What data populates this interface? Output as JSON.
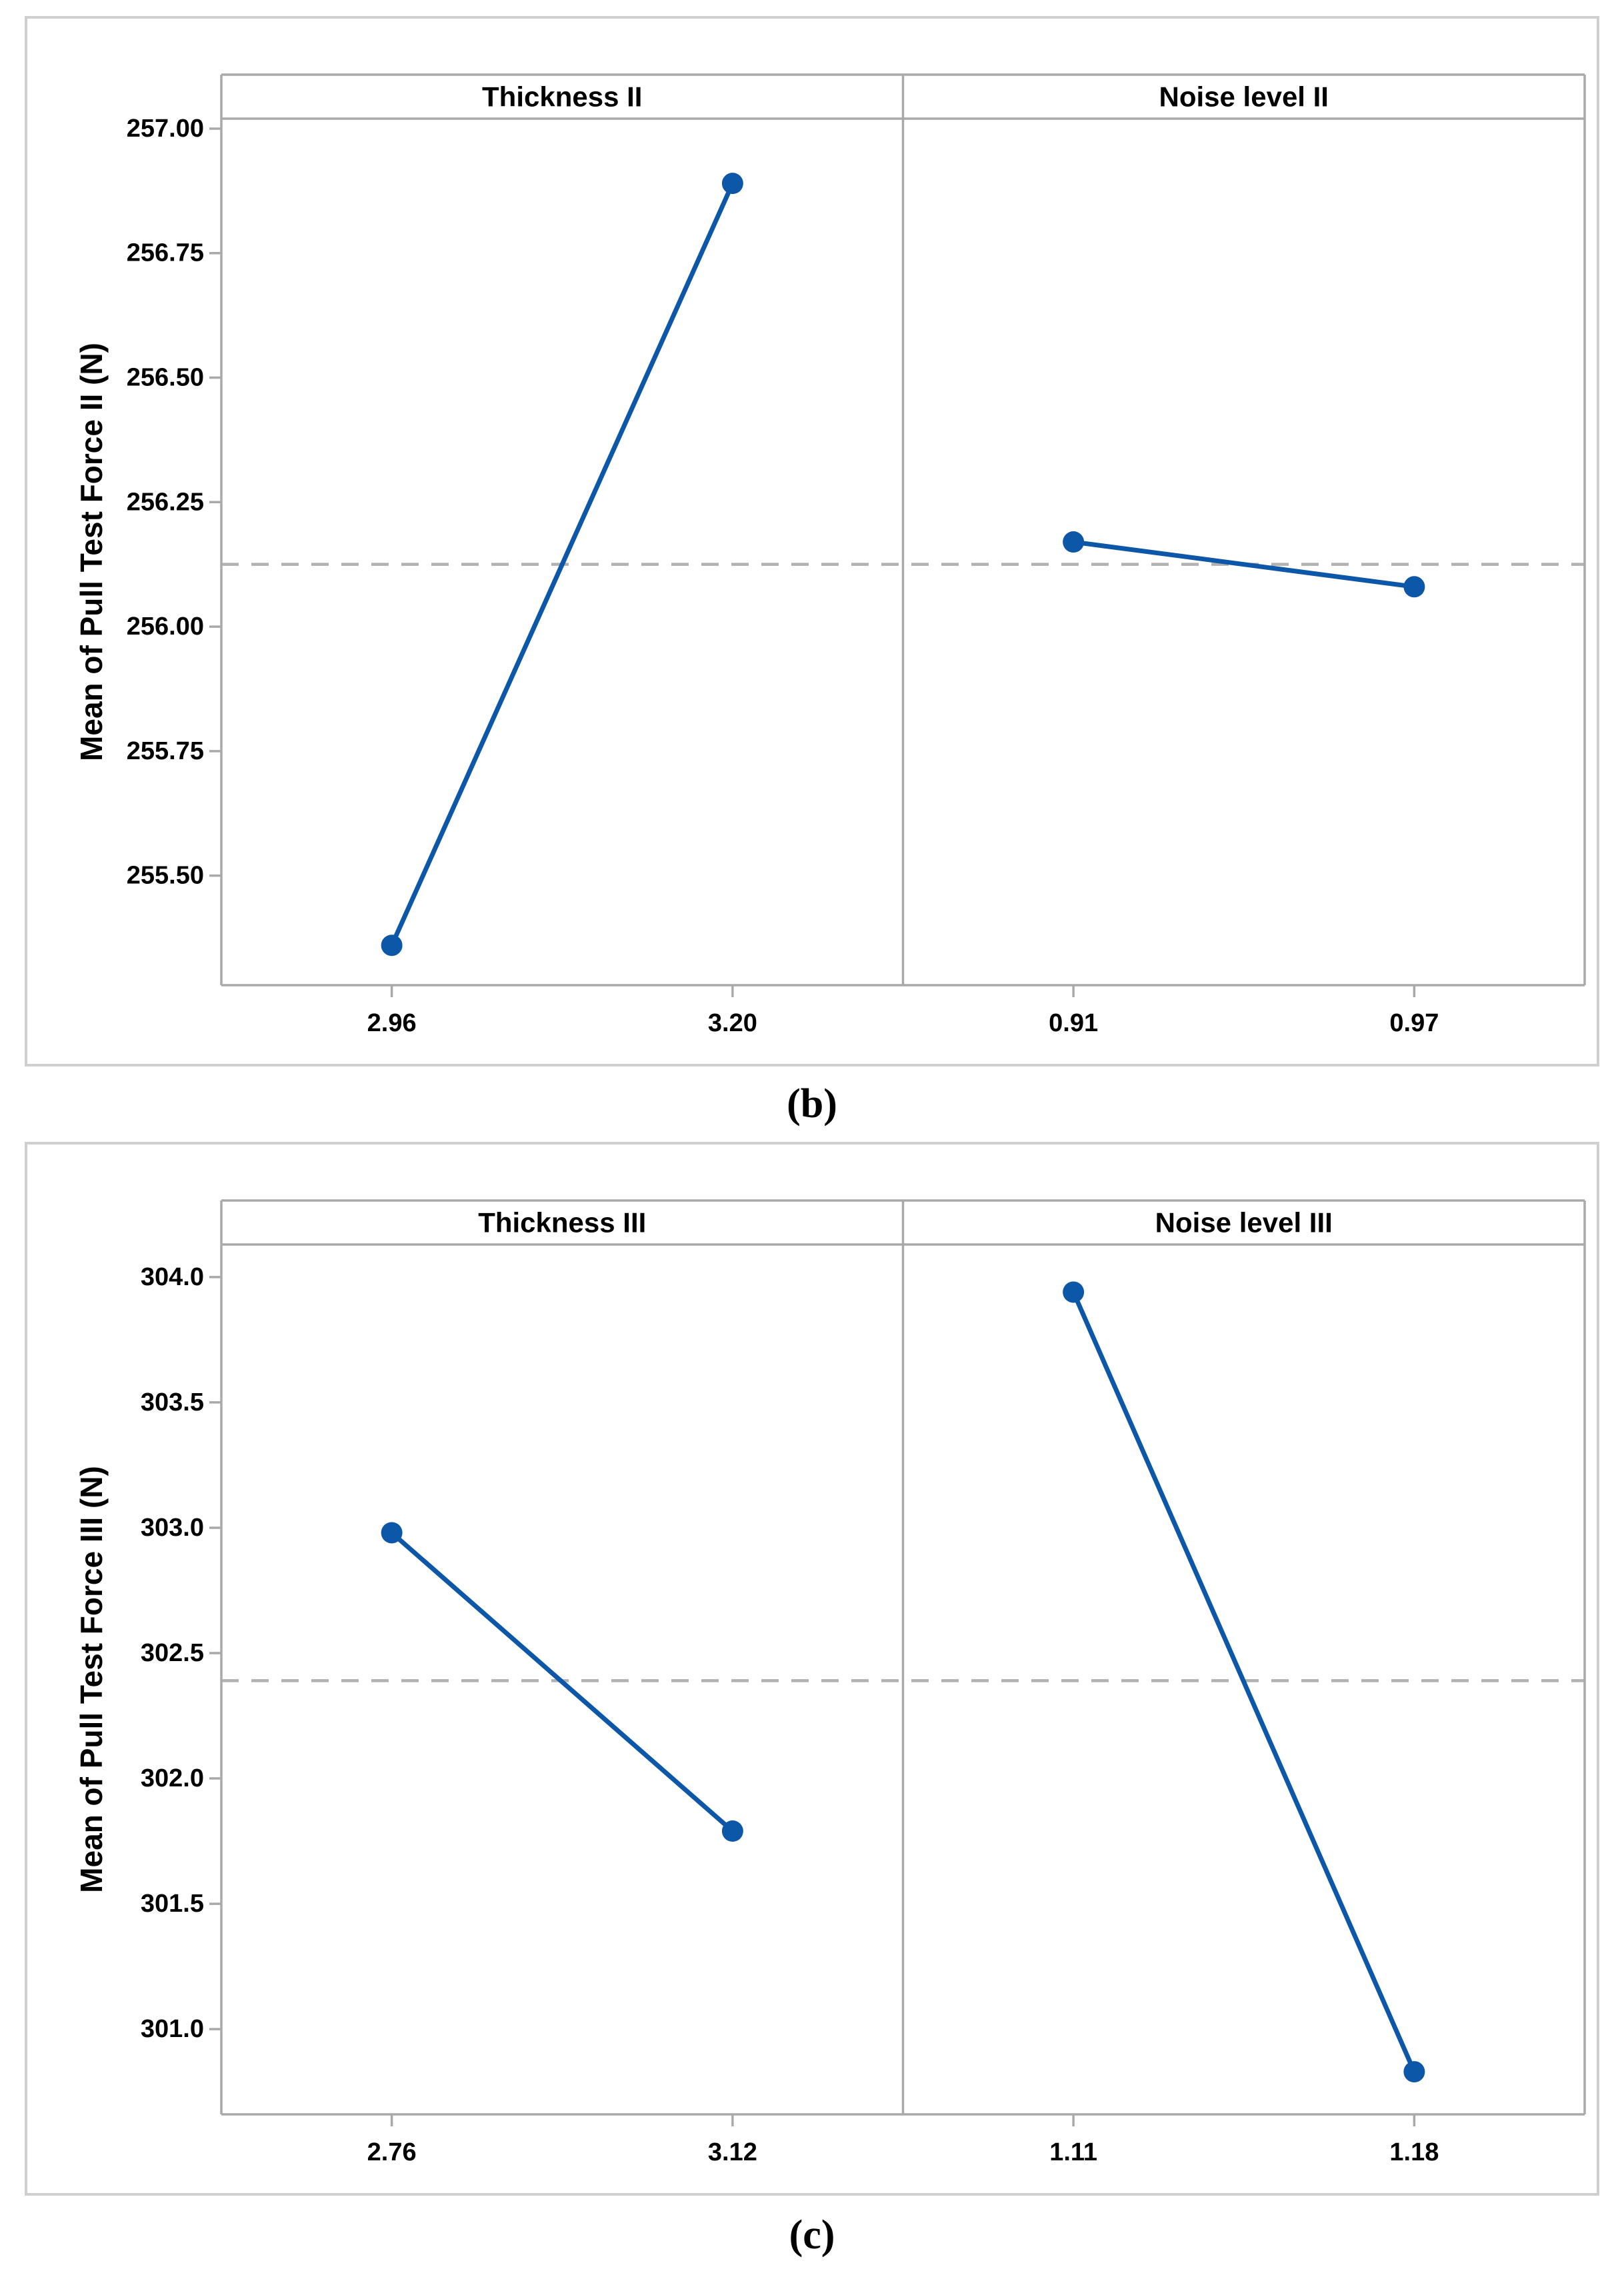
{
  "colors": {
    "line_blue": "#0D57A8",
    "panel_border_gray": "#a9a9a9",
    "outer_border_gray": "#cfcfcf",
    "dashed_mean_gray": "#b1b1b1",
    "tick_gray": "#a9a9a9",
    "text_black": "#000000",
    "background": "#ffffff"
  },
  "chart_data": [
    {
      "id": "b",
      "type": "line",
      "caption": "(b)",
      "ylabel": "Mean of Pull Test Force II (N)",
      "panels": [
        {
          "title": "Thickness II",
          "categories": [
            "2.96",
            "3.20"
          ],
          "values": [
            255.36,
            256.89
          ]
        },
        {
          "title": "Noise level II",
          "categories": [
            "0.91",
            "0.97"
          ],
          "values": [
            256.17,
            256.08
          ]
        }
      ],
      "mean_line": 256.125,
      "ytick_labels": [
        "255.50",
        "255.75",
        "256.00",
        "256.25",
        "256.50",
        "256.75",
        "257.00"
      ],
      "yticks": [
        255.5,
        255.75,
        256.0,
        256.25,
        256.5,
        256.75,
        257.0
      ],
      "ylim": [
        255.28,
        257.02
      ],
      "grid": false,
      "legend": false
    },
    {
      "id": "c",
      "type": "line",
      "caption": "(c)",
      "ylabel": "Mean of Pull Test Force III (N)",
      "panels": [
        {
          "title": "Thickness III",
          "categories": [
            "2.76",
            "3.12"
          ],
          "values": [
            302.98,
            301.79
          ]
        },
        {
          "title": "Noise level III",
          "categories": [
            "1.11",
            "1.18"
          ],
          "values": [
            303.94,
            300.83
          ]
        }
      ],
      "mean_line": 302.39,
      "ytick_labels": [
        "301.0",
        "301.5",
        "302.0",
        "302.5",
        "303.0",
        "303.5",
        "304.0"
      ],
      "yticks": [
        301.0,
        301.5,
        302.0,
        302.5,
        303.0,
        303.5,
        304.0
      ],
      "ylim": [
        300.66,
        304.13
      ],
      "grid": false,
      "legend": false
    }
  ]
}
